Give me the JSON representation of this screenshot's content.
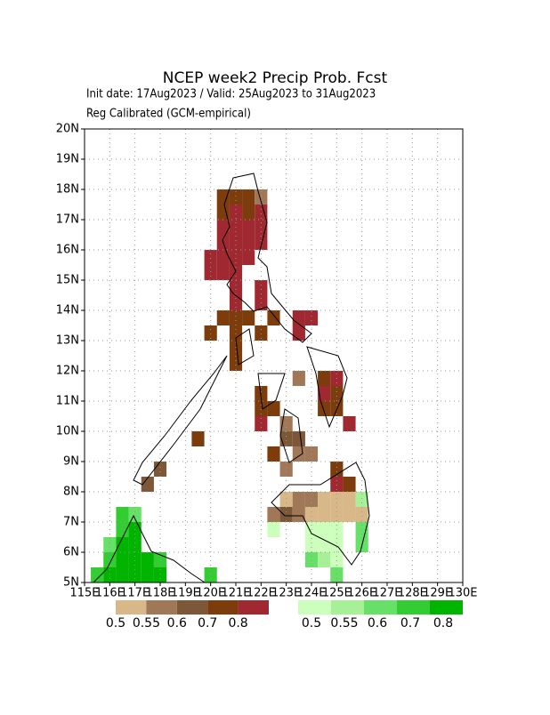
{
  "title": "NCEP week2 Precip Prob. Fcst",
  "init_line": "Init date: 17Aug2023 / Valid: 25Aug2023 to 31Aug2023",
  "subtitle": "Reg Calibrated (GCM-empirical)",
  "map": {
    "xlim": [
      115,
      130
    ],
    "ylim": [
      5,
      20
    ],
    "grid": true,
    "xticks": [
      {
        "value": 115,
        "label": "115E"
      },
      {
        "value": 116,
        "label": "116E"
      },
      {
        "value": 117,
        "label": "117E"
      },
      {
        "value": 118,
        "label": "118E"
      },
      {
        "value": 119,
        "label": "119E"
      },
      {
        "value": 120,
        "label": "120E"
      },
      {
        "value": 121,
        "label": "121E"
      },
      {
        "value": 122,
        "label": "122E"
      },
      {
        "value": 123,
        "label": "123E"
      },
      {
        "value": 124,
        "label": "124E"
      },
      {
        "value": 125,
        "label": "125E"
      },
      {
        "value": 126,
        "label": "126E"
      },
      {
        "value": 127,
        "label": "127E"
      },
      {
        "value": 128,
        "label": "128E"
      },
      {
        "value": 129,
        "label": "129E"
      },
      {
        "value": 130,
        "label": "130E"
      }
    ],
    "yticks": [
      {
        "value": 5,
        "label": "5N"
      },
      {
        "value": 6,
        "label": "6N"
      },
      {
        "value": 7,
        "label": "7N"
      },
      {
        "value": 8,
        "label": "8N"
      },
      {
        "value": 9,
        "label": "9N"
      },
      {
        "value": 10,
        "label": "10N"
      },
      {
        "value": 11,
        "label": "11N"
      },
      {
        "value": 12,
        "label": "12N"
      },
      {
        "value": 13,
        "label": "13N"
      },
      {
        "value": 14,
        "label": "14N"
      },
      {
        "value": 15,
        "label": "15N"
      },
      {
        "value": 16,
        "label": "16N"
      },
      {
        "value": 17,
        "label": "17N"
      },
      {
        "value": 18,
        "label": "18N"
      },
      {
        "value": 19,
        "label": "19N"
      },
      {
        "value": 20,
        "label": "20N"
      }
    ]
  },
  "dry": {
    "levels": [
      {
        "value": 0.5,
        "label": "0.5"
      },
      {
        "value": 0.55,
        "label": "0.55"
      },
      {
        "value": 0.6,
        "label": "0.6"
      },
      {
        "value": 0.7,
        "label": "0.7"
      },
      {
        "value": 0.8,
        "label": "0.8"
      }
    ],
    "colors": [
      "#d8b888",
      "#a07858",
      "#7c5838",
      "#7c3c0c",
      "#a02830"
    ],
    "cells": [
      [
        120.5,
        17.75,
        0.75
      ],
      [
        121,
        17.75,
        0.75
      ],
      [
        121.5,
        17.75,
        0.75
      ],
      [
        122,
        17.75,
        0.57
      ],
      [
        120.5,
        17.25,
        0.75
      ],
      [
        121,
        17.25,
        0.85
      ],
      [
        121.5,
        17.25,
        0.75
      ],
      [
        122,
        17.25,
        0.85
      ],
      [
        120.5,
        16.75,
        0.85
      ],
      [
        121,
        16.75,
        0.85
      ],
      [
        121.5,
        16.75,
        0.85
      ],
      [
        122,
        16.75,
        0.85
      ],
      [
        120.5,
        16.25,
        0.85
      ],
      [
        121,
        16.25,
        0.85
      ],
      [
        121.5,
        16.25,
        0.85
      ],
      [
        122,
        16.25,
        0.85
      ],
      [
        120,
        15.75,
        0.85
      ],
      [
        120.5,
        15.75,
        0.85
      ],
      [
        121,
        15.75,
        0.85
      ],
      [
        121.5,
        15.75,
        0.85
      ],
      [
        120,
        15.25,
        0.85
      ],
      [
        120.5,
        15.25,
        0.85
      ],
      [
        121,
        15.25,
        0.85
      ],
      [
        121,
        14.75,
        0.85
      ],
      [
        122,
        14.75,
        0.85
      ],
      [
        121,
        14.25,
        0.85
      ],
      [
        122,
        14.25,
        0.85
      ],
      [
        120.5,
        13.75,
        0.75
      ],
      [
        121,
        13.75,
        0.75
      ],
      [
        121.5,
        13.75,
        0.75
      ],
      [
        122.5,
        13.75,
        0.75
      ],
      [
        123.5,
        13.75,
        0.85
      ],
      [
        124,
        13.75,
        0.85
      ],
      [
        120,
        13.25,
        0.75
      ],
      [
        121,
        13.25,
        0.75
      ],
      [
        122,
        13.25,
        0.75
      ],
      [
        123.5,
        13.25,
        0.85
      ],
      [
        121,
        12.75,
        0.75
      ],
      [
        121,
        12.25,
        0.75
      ],
      [
        123.5,
        11.75,
        0.57
      ],
      [
        124.5,
        11.75,
        0.75
      ],
      [
        125,
        11.75,
        0.85
      ],
      [
        122,
        11.25,
        0.75
      ],
      [
        124.5,
        11.25,
        0.85
      ],
      [
        125,
        11.25,
        0.75
      ],
      [
        122,
        10.75,
        0.75
      ],
      [
        122.5,
        10.75,
        0.75
      ],
      [
        124.5,
        10.75,
        0.75
      ],
      [
        125,
        10.75,
        0.75
      ],
      [
        122,
        10.25,
        0.85
      ],
      [
        123,
        10.25,
        0.57
      ],
      [
        125.5,
        10.25,
        0.85
      ],
      [
        119.5,
        9.75,
        0.75
      ],
      [
        123,
        9.75,
        0.65
      ],
      [
        123.5,
        9.75,
        0.65
      ],
      [
        122.5,
        9.25,
        0.75
      ],
      [
        123.5,
        9.25,
        0.57
      ],
      [
        124,
        9.25,
        0.57
      ],
      [
        118,
        8.75,
        0.65
      ],
      [
        123,
        8.75,
        0.57
      ],
      [
        125,
        8.75,
        0.75
      ],
      [
        117.5,
        8.25,
        0.65
      ],
      [
        125,
        8.25,
        0.85
      ],
      [
        125.5,
        8.25,
        0.75
      ],
      [
        123,
        7.75,
        0.52
      ],
      [
        123.5,
        7.75,
        0.57
      ],
      [
        124,
        7.75,
        0.57
      ],
      [
        124.5,
        7.75,
        0.52
      ],
      [
        125,
        7.75,
        0.52
      ],
      [
        125.5,
        7.75,
        0.52
      ],
      [
        122.5,
        7.25,
        0.57
      ],
      [
        123,
        7.25,
        0.65
      ],
      [
        123.5,
        7.25,
        0.57
      ],
      [
        124,
        7.25,
        0.52
      ],
      [
        124.5,
        7.25,
        0.52
      ],
      [
        125,
        7.25,
        0.52
      ],
      [
        125.5,
        7.25,
        0.52
      ],
      [
        126,
        7.25,
        0.52
      ]
    ]
  },
  "wet": {
    "levels": [
      {
        "value": 0.5,
        "label": "0.5"
      },
      {
        "value": 0.55,
        "label": "0.55"
      },
      {
        "value": 0.6,
        "label": "0.6"
      },
      {
        "value": 0.7,
        "label": "0.7"
      },
      {
        "value": 0.8,
        "label": "0.8"
      }
    ],
    "colors": [
      "#ccffbb",
      "#a8f098",
      "#66e066",
      "#33cc33",
      "#00b400"
    ],
    "cells": [
      [
        126,
        7.75,
        0.57
      ],
      [
        122.5,
        6.75,
        0.52
      ],
      [
        124,
        6.75,
        0.52
      ],
      [
        124.5,
        6.75,
        0.52
      ],
      [
        125,
        6.75,
        0.52
      ],
      [
        126,
        6.75,
        0.65
      ],
      [
        124,
        6.25,
        0.52
      ],
      [
        124.5,
        6.25,
        0.52
      ],
      [
        125,
        6.25,
        0.52
      ],
      [
        126,
        6.25,
        0.65
      ],
      [
        124,
        5.75,
        0.65
      ],
      [
        124.5,
        5.75,
        0.57
      ],
      [
        125,
        5.75,
        0.52
      ],
      [
        125,
        5.25,
        0.65
      ],
      [
        116.5,
        7.25,
        0.75
      ],
      [
        117,
        7.25,
        0.65
      ],
      [
        116.5,
        6.75,
        0.75
      ],
      [
        117,
        6.75,
        0.85
      ],
      [
        116,
        6.25,
        0.65
      ],
      [
        116.5,
        6.25,
        0.85
      ],
      [
        117,
        6.25,
        0.85
      ],
      [
        116,
        5.75,
        0.75
      ],
      [
        116.5,
        5.75,
        0.85
      ],
      [
        117,
        5.75,
        0.85
      ],
      [
        117.5,
        5.75,
        0.85
      ],
      [
        118,
        5.75,
        0.75
      ],
      [
        115.5,
        5.25,
        0.75
      ],
      [
        116,
        5.25,
        0.85
      ],
      [
        116.5,
        5.25,
        0.85
      ],
      [
        117,
        5.25,
        0.85
      ],
      [
        117.5,
        5.25,
        0.85
      ],
      [
        118,
        5.25,
        0.85
      ],
      [
        120,
        5.25,
        0.75
      ]
    ]
  }
}
